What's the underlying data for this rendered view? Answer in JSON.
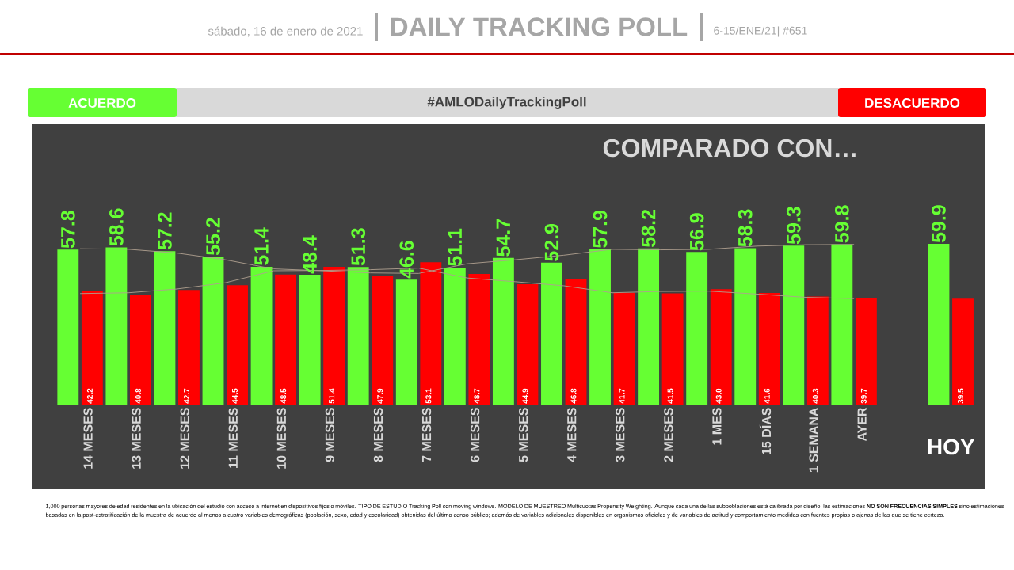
{
  "chart_data": {
    "type": "bar",
    "title": "DAILY TRACKING POLL",
    "subtitle": "sábado, 16 de enero de 2021",
    "annotations": [
      "6-15/ENE/21| #651",
      "#AMLODailyTrackingPoll",
      "COMPARADO CON…",
      "1,000 personas mayores de edad residentes en la ubicación del estudio con acceso a internet en dispositivos fijos o móviles. TIPO DE ESTUDIO Tracking Poll con moving windows. MODELO DE MUESTREO Multicuotas Propensity Weighting. Aunque cada una de las subpoblaciones está calibrada por diseño, las estimaciones **NO SON FRECUENCIAS SIMPLES** sino estimaciones basadas en la post-estratificación de la muestra de acuerdo al menos a cuatro variables demográficas (población, sexo, edad y escolaridad) obtenidas del último censo público; además de variables adicionales disponibles en organismos oficiales y de variables de actitud y comportamiento medidas con fuentes propias o ajenas de las que se tiene certeza."
    ],
    "categories": [
      "14 MESES",
      "13 MESES",
      "12 MESES",
      "11 MESES",
      "10 MESES",
      "9 MESES",
      "8 MESES",
      "7 MESES",
      "6 MESES",
      "5 MESES",
      "4 MESES",
      "3 MESES",
      "2 MESES",
      "1 MES",
      "15 DÍAS",
      "1 SEMANA",
      "AYER",
      null,
      "HOY"
    ],
    "series": [
      {
        "name": "ACUERDO",
        "color": "#66ff33",
        "values": [
          57.8,
          58.6,
          57.2,
          55.2,
          51.4,
          48.4,
          51.3,
          46.6,
          51.1,
          54.7,
          52.9,
          57.9,
          58.2,
          56.9,
          58.3,
          59.3,
          59.8,
          null,
          59.9
        ],
        "value_labels": [
          "57.8",
          "58.6",
          "57.2",
          "55.2",
          "51.4",
          "48.4",
          "51.3",
          "46.6",
          "51.1",
          "54.7",
          "52.9",
          "57.9",
          "58.2",
          "56.9",
          "58.3",
          "59.3",
          "59.8",
          null,
          "59.9"
        ]
      },
      {
        "name": "DESACUERDO",
        "color": "#ff0000",
        "values": [
          42.2,
          40.8,
          42.7,
          44.5,
          48.5,
          51.4,
          47.9,
          53.1,
          48.7,
          44.9,
          46.8,
          41.7,
          41.5,
          43.0,
          41.6,
          40.3,
          39.7,
          null,
          39.5
        ],
        "value_labels": [
          "42.2",
          "40.8",
          "42.7",
          "44.5",
          "48.5",
          "51.4",
          "47.9",
          "53.1",
          "48.7",
          "44.9",
          "46.8",
          "41.7",
          "41.5",
          "43.0",
          "41.6",
          "40.3",
          "39.7",
          null,
          "39.5"
        ]
      },
      {
        "type": "line",
        "color": "#b0a090",
        "values": [
          58.1,
          57.9,
          56.5,
          54.0,
          50.6,
          49.9,
          49.1,
          48.9,
          52.5,
          54.0,
          55.7,
          57.9,
          57.7,
          57.9,
          59.1,
          59.6,
          59.7,
          null,
          null
        ]
      },
      {
        "type": "line",
        "color": "#b0a090",
        "values": [
          41.4,
          41.7,
          43.1,
          45.4,
          49.9,
          50.0,
          50.3,
          50.9,
          47.2,
          45.8,
          44.3,
          41.7,
          42.2,
          42.3,
          41.2,
          40.0,
          39.5,
          null,
          null
        ]
      }
    ],
    "legend": "top"
  }
}
